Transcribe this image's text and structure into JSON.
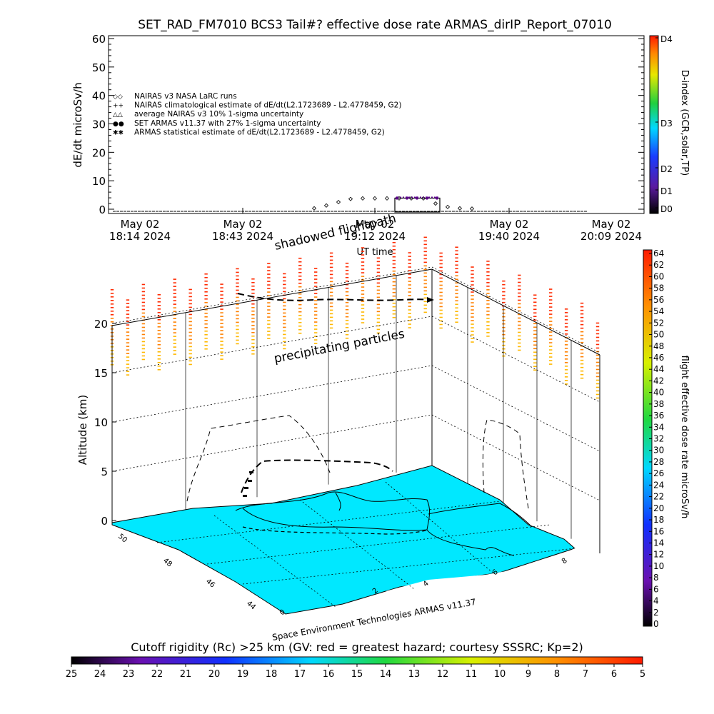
{
  "title": "SET_RAD_FM7010  BCS3 Tail#? effective dose rate ARMAS_dirIP_Report_07010",
  "chart_data": [
    {
      "type": "scatter",
      "ylabel": "dE/dt microSv/h",
      "xlabel": "UT time",
      "ylim": [
        0,
        60
      ],
      "yticks": [
        0,
        10,
        20,
        30,
        40,
        50,
        60
      ],
      "xticks": [
        {
          "date": "May 02",
          "time": "18:14 2024"
        },
        {
          "date": "May 02",
          "time": "18:43 2024"
        },
        {
          "date": "May 02",
          "time": "19:12 2024"
        },
        {
          "date": "May 02",
          "time": "19:40 2024"
        },
        {
          "date": "May 02",
          "time": "20:09 2024"
        }
      ],
      "legend": [
        {
          "symbol": "◇◇",
          "text": "NAIRAS v3 NASA LaRC runs"
        },
        {
          "symbol": "++",
          "text": "NAIRAS climatological estimate of dE/dt(L2.1723689 - L2.4778459, G2)"
        },
        {
          "symbol": "△△",
          "text": "average NAIRAS v3 10% 1-sigma uncertainty"
        },
        {
          "symbol": "●●",
          "text": "SET ARMAS v11.37 with 27% 1-sigma uncertainty"
        },
        {
          "symbol": "✱✱",
          "text": "ARMAS statistical estimate of dE/dt(L2.1723689 - L2.4778459, G2)"
        }
      ],
      "series": [
        {
          "name": "NAIRAS v3 NASA LaRC runs",
          "x": [
            18.95,
            19.0,
            19.05,
            19.1,
            19.15,
            19.2,
            19.25,
            19.3,
            19.35,
            19.4,
            19.45,
            19.5,
            19.55,
            19.6
          ],
          "values": [
            0.3,
            1.3,
            2.5,
            3.6,
            3.8,
            3.8,
            3.8,
            3.8,
            3.8,
            3.8,
            2.0,
            0.8,
            0.3,
            0.2
          ]
        },
        {
          "name": "SET ARMAS v11.37 with 27% 1-sigma uncertainty",
          "x": [
            19.25,
            19.3,
            19.35,
            19.4,
            19.45
          ],
          "values": [
            3.9,
            3.9,
            3.9,
            3.9,
            3.9
          ]
        }
      ],
      "colorbar": {
        "label": "D-index (GCR,solar,TP)",
        "ticks": [
          "D0",
          "D1",
          "D2",
          "D3",
          "D4"
        ]
      }
    },
    {
      "type": "scatter",
      "title": "",
      "zlabel": "Altitude (km)",
      "zticks": [
        0,
        5,
        10,
        15,
        20
      ],
      "axis_ticks_left": [
        "50",
        "48",
        "46",
        "44"
      ],
      "axis_ticks_bottom": [
        "0",
        "2",
        "4",
        "6",
        "8"
      ],
      "annotations": [
        "shadowed flightpath",
        "precipitating particles",
        "Space Environment Technologies ARMAS v11.37"
      ],
      "colorbar_right": {
        "label": "flight effective dose rate microSv/h",
        "min": 0,
        "max": 64,
        "step": 2
      },
      "colorbar_bottom": {
        "label": "Cutoff rigidity (Rc) >25 km (GV: red = greatest hazard; courtesy SSSRC; Kp=2)",
        "ticks": [
          "25",
          "24",
          "23",
          "22",
          "21",
          "20",
          "19",
          "18",
          "17",
          "16",
          "15",
          "14",
          "13",
          "12",
          "11",
          "10",
          "9",
          "8",
          "7",
          "6",
          "5"
        ]
      }
    }
  ]
}
